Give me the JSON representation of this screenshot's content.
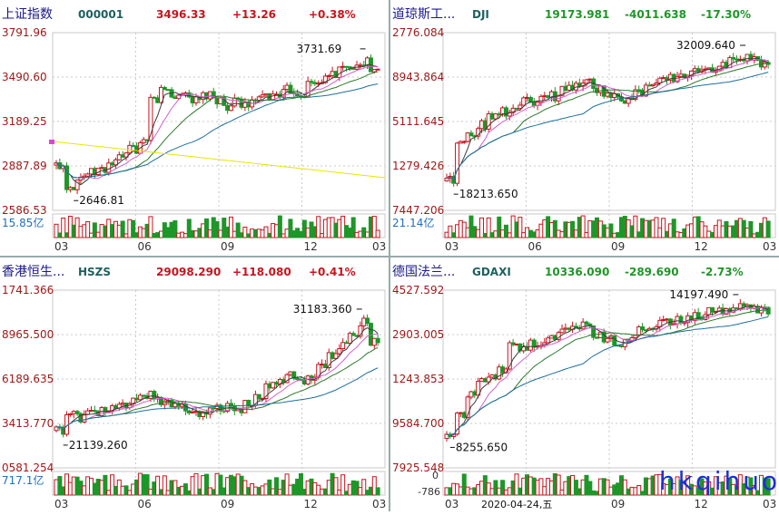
{
  "watermark": "hkqihuo",
  "colors": {
    "up": "#c8141e",
    "down": "#1e9628",
    "ma5": "#3c3c3c",
    "ma10": "#b8b800",
    "ma20": "#d060d0",
    "ma60": "#2a7a2a",
    "ma120": "#1f6f9f",
    "grid": "#c8c8c8",
    "name": "#1a1a8c",
    "code": "#1e6060"
  },
  "chart_data": [
    {
      "type": "candlestick",
      "name": "上证指数",
      "code": "000001",
      "price": "3496.33",
      "change": "+13.26",
      "pct": "+0.38%",
      "direction": "up",
      "y_labels": [
        "3791.96",
        "3490.60",
        "3189.25",
        "2887.89",
        "2586.53"
      ],
      "ylim": [
        2586.53,
        3791.96
      ],
      "x_labels": [
        "03",
        "06",
        "09",
        "12",
        "03"
      ],
      "high_label": "3731.69",
      "low_label": "2646.81",
      "volume_label": "15.85亿",
      "shape": [
        0.25,
        0.12,
        0.18,
        0.2,
        0.22,
        0.26,
        0.3,
        0.35,
        0.38,
        0.66,
        0.72,
        0.68,
        0.7,
        0.65,
        0.68,
        0.66,
        0.62,
        0.64,
        0.63,
        0.66,
        0.68,
        0.7,
        0.72,
        0.7,
        0.76,
        0.78,
        0.82,
        0.85,
        0.88,
        0.9,
        0.84
      ],
      "trendline": true
    },
    {
      "type": "candlestick",
      "name": "道琼斯工...",
      "code": "DJI",
      "price": "19173.981",
      "change": "-4011.638",
      "pct": "-17.30%",
      "direction": "down",
      "y_labels": [
        "2776.084",
        "8943.864",
        "5111.645",
        "1279.426",
        "7447.206"
      ],
      "x_labels": [
        "03",
        "06",
        "09",
        "12",
        "03"
      ],
      "high_label": "32009.640",
      "low_label": "18213.650",
      "volume_label": "21.14亿",
      "shape": [
        0.15,
        0.4,
        0.45,
        0.5,
        0.55,
        0.58,
        0.6,
        0.65,
        0.63,
        0.66,
        0.68,
        0.72,
        0.74,
        0.76,
        0.72,
        0.7,
        0.68,
        0.66,
        0.7,
        0.74,
        0.78,
        0.8,
        0.82,
        0.84,
        0.85,
        0.86,
        0.87,
        0.9,
        0.92,
        0.9,
        0.88
      ],
      "trendline": false
    },
    {
      "type": "candlestick",
      "name": "香港恒生...",
      "code": "HSZS",
      "price": "29098.290",
      "change": "+118.080",
      "pct": "+0.41%",
      "direction": "up",
      "y_labels": [
        "1741.366",
        "8965.500",
        "6189.635",
        "3413.770",
        "0581.254"
      ],
      "x_labels": [
        "03",
        "06",
        "09",
        "12",
        "03"
      ],
      "high_label": "31183.360",
      "low_label": "21139.260",
      "volume_label": "717.1亿",
      "shape": [
        0.2,
        0.3,
        0.28,
        0.3,
        0.32,
        0.35,
        0.36,
        0.38,
        0.4,
        0.42,
        0.38,
        0.36,
        0.34,
        0.3,
        0.32,
        0.33,
        0.35,
        0.34,
        0.36,
        0.4,
        0.48,
        0.52,
        0.55,
        0.5,
        0.53,
        0.6,
        0.68,
        0.74,
        0.8,
        0.88,
        0.76
      ],
      "trendline": false
    },
    {
      "type": "candlestick",
      "name": "德国法兰...",
      "code": "GDAXI",
      "price": "10336.090",
      "change": "-289.690",
      "pct": "-2.73%",
      "direction": "down",
      "y_labels": [
        "4527.592",
        "2903.005",
        "1243.853",
        "9584.700",
        "7925.548"
      ],
      "x_labels": [
        "03",
        "06",
        "09",
        "12",
        "03"
      ],
      "high_label": "14197.490",
      "low_label": "8255.650",
      "volume_label": "",
      "macd_labels": [
        "0",
        "-786"
      ],
      "date_label": "2020-04-24,五",
      "shape": [
        0.15,
        0.3,
        0.42,
        0.5,
        0.55,
        0.58,
        0.72,
        0.7,
        0.74,
        0.76,
        0.8,
        0.82,
        0.84,
        0.85,
        0.8,
        0.78,
        0.75,
        0.78,
        0.82,
        0.85,
        0.87,
        0.88,
        0.9,
        0.91,
        0.92,
        0.94,
        0.95,
        0.96,
        0.97,
        0.96,
        0.95
      ],
      "trendline": false
    }
  ]
}
